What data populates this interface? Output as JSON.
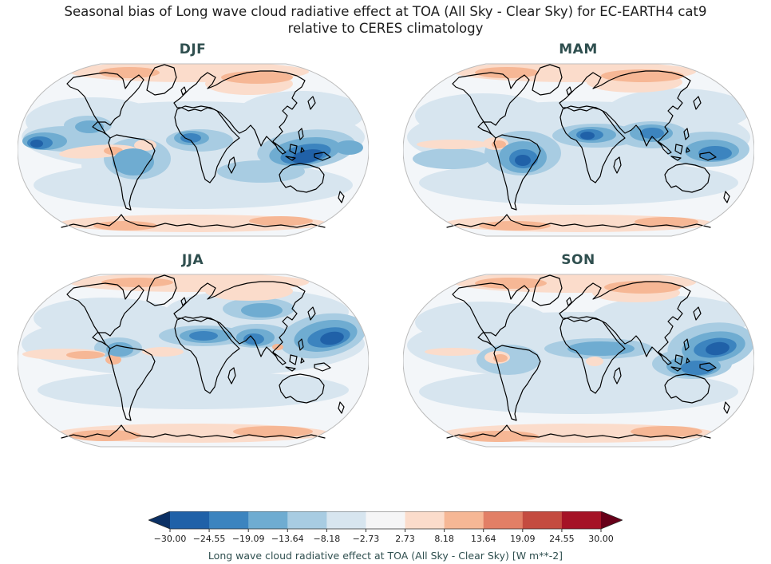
{
  "figure": {
    "title_line1": "Seasonal bias of Long wave cloud radiative effect at TOA (All Sky - Clear Sky) for EC-EARTH4 cat9",
    "title_line2": "relative to CERES climatology",
    "background_color": "#ffffff"
  },
  "panels": [
    {
      "id": "djf",
      "label": "DJF"
    },
    {
      "id": "mam",
      "label": "MAM"
    },
    {
      "id": "jja",
      "label": "JJA"
    },
    {
      "id": "son",
      "label": "SON"
    }
  ],
  "colorbar": {
    "label": "Long wave cloud radiative effect at TOA (All Sky - Clear Sky) [W m**-2]",
    "ticks": [
      "−30.00",
      "−24.55",
      "−19.09",
      "−13.64",
      "−8.18",
      "−2.73",
      "2.73",
      "8.18",
      "13.64",
      "19.09",
      "24.55",
      "30.00"
    ],
    "tick_color": "#1a1a1a",
    "label_color": "#2F4F4F",
    "outline_color": "#2b2b2b"
  },
  "colors": {
    "panel_title": "#2F4F4F",
    "coastline": "#000000",
    "map_outline": "#bcbcbc",
    "ocean_base": "#f3f6f9"
  },
  "chart_data": {
    "type": "heatmap",
    "subtype": "filled-contour world maps, 2x2 seasonal grid",
    "projection": "Robinson",
    "variable": "Long wave cloud radiative effect at TOA (All Sky - Clear Sky)",
    "units": "W m**-2",
    "model": "EC-EARTH4 cat9",
    "reference": "CERES climatology",
    "levels": [
      -30.0,
      -24.55,
      -19.09,
      -13.64,
      -8.18,
      -2.73,
      2.73,
      8.18,
      13.64,
      19.09,
      24.55,
      30.0
    ],
    "colormap": "RdBu_r (blue = negative bias, red = positive bias), with extend arrows both ends",
    "palette": [
      "#0B3064",
      "#2061A8",
      "#3C84BF",
      "#6FACD1",
      "#A8CCE2",
      "#D7E5EF",
      "#F5F5F6",
      "#FBDCCB",
      "#F6B795",
      "#E27F66",
      "#C44B40",
      "#A51226",
      "#670019"
    ],
    "panels": [
      {
        "season": "DJF",
        "summary": "Negative bias (blue, down to < -24 W m**-2) over the Maritime Continent / northern Australia, equatorial east Pacific edge and Gulf of Guinea; weak negative bias over most oceans; positive bias (orange, ~+3 to +14) over the Arctic, Siberia, Antarctic coast and a strip in the SE tropical Pacific.",
        "blobs": [
          [
            220,
            95,
            215,
            45,
            5,
            0
          ],
          [
            220,
            155,
            200,
            30,
            5,
            0
          ],
          [
            95,
            75,
            85,
            30,
            5,
            0
          ],
          [
            355,
            65,
            80,
            28,
            5,
            0
          ],
          [
            150,
            130,
            70,
            35,
            5,
            0
          ],
          [
            62,
            97,
            55,
            16,
            4,
            0
          ],
          [
            150,
            122,
            42,
            26,
            4,
            0
          ],
          [
            228,
            99,
            42,
            14,
            4,
            0
          ],
          [
            362,
            110,
            62,
            24,
            4,
            -6
          ],
          [
            305,
            138,
            55,
            14,
            4,
            0
          ],
          [
            88,
            80,
            30,
            12,
            4,
            0
          ],
          [
            215,
            13,
            150,
            13,
            7,
            0
          ],
          [
            220,
            203,
            168,
            11,
            7,
            0
          ],
          [
            100,
            113,
            48,
            8,
            7,
            -4
          ],
          [
            290,
            28,
            55,
            14,
            7,
            0
          ],
          [
            160,
            105,
            14,
            7,
            7,
            0
          ],
          [
            140,
            14,
            38,
            7,
            8,
            0
          ],
          [
            300,
            20,
            45,
            8,
            8,
            0
          ],
          [
            135,
            206,
            40,
            6,
            8,
            0
          ],
          [
            330,
            200,
            40,
            6,
            8,
            0
          ],
          [
            120,
            112,
            12,
            5,
            8,
            0
          ],
          [
            34,
            100,
            28,
            11,
            3,
            0
          ],
          [
            145,
            126,
            26,
            17,
            3,
            0
          ],
          [
            218,
            96,
            22,
            9,
            3,
            0
          ],
          [
            360,
            113,
            45,
            17,
            3,
            -8
          ],
          [
            415,
            108,
            18,
            9,
            3,
            0
          ],
          [
            90,
            82,
            18,
            8,
            3,
            0
          ],
          [
            28,
            102,
            16,
            8,
            2,
            0
          ],
          [
            217,
            96,
            13,
            6,
            2,
            0
          ],
          [
            361,
            116,
            32,
            12,
            2,
            -10
          ],
          [
            363,
            119,
            20,
            8,
            1,
            -12
          ],
          [
            24,
            103,
            8,
            5,
            1,
            0
          ]
        ]
      },
      {
        "season": "MAM",
        "summary": "Strong negative bias (< -24 W m**-2) over the Sahel / West Africa, Amazonia, India-Bay of Bengal and the tropical west Pacific; positive bias over the Arctic, Antarctic coastal band and a small spot near the Peruvian coast.",
        "blobs": [
          [
            220,
            95,
            215,
            45,
            5,
            0
          ],
          [
            220,
            152,
            200,
            28,
            5,
            0
          ],
          [
            100,
            68,
            85,
            28,
            5,
            0
          ],
          [
            345,
            62,
            90,
            28,
            5,
            0
          ],
          [
            150,
            115,
            48,
            28,
            4,
            0
          ],
          [
            242,
            93,
            55,
            15,
            4,
            0
          ],
          [
            312,
            92,
            45,
            17,
            4,
            0
          ],
          [
            382,
            110,
            52,
            22,
            4,
            0
          ],
          [
            60,
            122,
            48,
            13,
            4,
            0
          ],
          [
            215,
            13,
            152,
            13,
            7,
            0
          ],
          [
            220,
            203,
            168,
            11,
            7,
            0
          ],
          [
            62,
            104,
            45,
            6,
            7,
            0
          ],
          [
            290,
            26,
            60,
            13,
            7,
            0
          ],
          [
            116,
            103,
            16,
            8,
            7,
            0
          ],
          [
            130,
            14,
            40,
            7,
            8,
            0
          ],
          [
            300,
            18,
            52,
            8,
            8,
            0
          ],
          [
            140,
            206,
            45,
            6,
            8,
            0
          ],
          [
            330,
            201,
            40,
            6,
            8,
            0
          ],
          [
            120,
            104,
            9,
            5,
            8,
            0
          ],
          [
            150,
            120,
            30,
            20,
            3,
            0
          ],
          [
            237,
            92,
            30,
            10,
            3,
            0
          ],
          [
            311,
            90,
            27,
            11,
            3,
            0
          ],
          [
            387,
            112,
            34,
            14,
            3,
            0
          ],
          [
            151,
            122,
            18,
            12,
            2,
            0
          ],
          [
            234,
            92,
            17,
            7,
            2,
            0
          ],
          [
            312,
            90,
            15,
            7,
            2,
            0
          ],
          [
            391,
            115,
            21,
            9,
            2,
            0
          ],
          [
            150,
            124,
            10,
            7,
            1,
            0
          ],
          [
            231,
            93,
            9,
            5,
            1,
            0
          ]
        ]
      },
      {
        "season": "JJA",
        "summary": "Strong negative bias over East Asia / NW Pacific, the Sahel band, Arabian Sea-India and central Asia; positive bias along the equatorial east Pacific and Atlantic cold tongues, the Arctic and the Antarctic coastal band.",
        "blobs": [
          [
            220,
            90,
            215,
            42,
            5,
            0
          ],
          [
            220,
            148,
            195,
            24,
            5,
            0
          ],
          [
            110,
            58,
            90,
            26,
            5,
            0
          ],
          [
            300,
            50,
            115,
            28,
            5,
            0
          ],
          [
            382,
            80,
            55,
            27,
            4,
            -10
          ],
          [
            232,
            80,
            55,
            13,
            4,
            0
          ],
          [
            300,
            80,
            42,
            15,
            4,
            0
          ],
          [
            302,
            46,
            45,
            14,
            4,
            0
          ],
          [
            126,
            95,
            30,
            13,
            4,
            0
          ],
          [
            215,
            13,
            150,
            12,
            7,
            0
          ],
          [
            220,
            202,
            170,
            12,
            7,
            0
          ],
          [
            58,
            103,
            52,
            7,
            7,
            0
          ],
          [
            182,
            100,
            26,
            6,
            7,
            0
          ],
          [
            290,
            24,
            55,
            12,
            7,
            0
          ],
          [
            150,
            13,
            45,
            6,
            8,
            0
          ],
          [
            110,
            205,
            45,
            7,
            8,
            0
          ],
          [
            320,
            200,
            50,
            7,
            8,
            0
          ],
          [
            85,
            104,
            24,
            5,
            8,
            0
          ],
          [
            120,
            110,
            10,
            6,
            8,
            0
          ],
          [
            326,
            94,
            7,
            4,
            8,
            0
          ],
          [
            386,
            80,
            40,
            19,
            3,
            -10
          ],
          [
            236,
            80,
            33,
            9,
            3,
            0
          ],
          [
            298,
            82,
            24,
            11,
            3,
            0
          ],
          [
            128,
            97,
            17,
            9,
            3,
            0
          ],
          [
            306,
            48,
            26,
            9,
            3,
            0
          ],
          [
            390,
            82,
            27,
            12,
            2,
            -10
          ],
          [
            233,
            80,
            18,
            6,
            2,
            0
          ],
          [
            296,
            84,
            13,
            7,
            2,
            0
          ],
          [
            394,
            83,
            15,
            8,
            1,
            -10
          ]
        ]
      },
      {
        "season": "SON",
        "summary": "Very strong negative bias (< -24 W m**-2) over the tropical west Pacific east of the Philippines and the Maritime Continent; negative band across the tropical Atlantic / Africa; positive bias over the Arctic, Antarctic coastal band and the Peruvian coast.",
        "blobs": [
          [
            220,
            92,
            215,
            42,
            5,
            0
          ],
          [
            220,
            150,
            200,
            28,
            5,
            0
          ],
          [
            100,
            63,
            85,
            26,
            5,
            0
          ],
          [
            335,
            58,
            100,
            28,
            5,
            0
          ],
          [
            386,
            93,
            55,
            29,
            4,
            -8
          ],
          [
            245,
            96,
            68,
            13,
            4,
            0
          ],
          [
            362,
            115,
            50,
            19,
            4,
            0
          ],
          [
            132,
            110,
            40,
            19,
            4,
            0
          ],
          [
            215,
            13,
            152,
            13,
            7,
            0
          ],
          [
            220,
            202,
            170,
            12,
            7,
            0
          ],
          [
            62,
            100,
            35,
            5,
            7,
            0
          ],
          [
            292,
            26,
            55,
            12,
            7,
            0
          ],
          [
            240,
            112,
            11,
            6,
            7,
            0
          ],
          [
            118,
            107,
            16,
            8,
            7,
            0
          ],
          [
            135,
            14,
            45,
            7,
            8,
            0
          ],
          [
            300,
            19,
            48,
            8,
            8,
            0
          ],
          [
            120,
            206,
            50,
            7,
            8,
            0
          ],
          [
            330,
            200,
            45,
            7,
            8,
            0
          ],
          [
            122,
            108,
            9,
            5,
            8,
            0
          ],
          [
            389,
            94,
            40,
            19,
            3,
            -8
          ],
          [
            248,
            96,
            42,
            9,
            3,
            0
          ],
          [
            364,
            118,
            34,
            13,
            3,
            0
          ],
          [
            391,
            95,
            27,
            12,
            2,
            -8
          ],
          [
            369,
            120,
            21,
            9,
            2,
            0
          ],
          [
            394,
            96,
            15,
            8,
            1,
            -8
          ]
        ]
      }
    ]
  }
}
